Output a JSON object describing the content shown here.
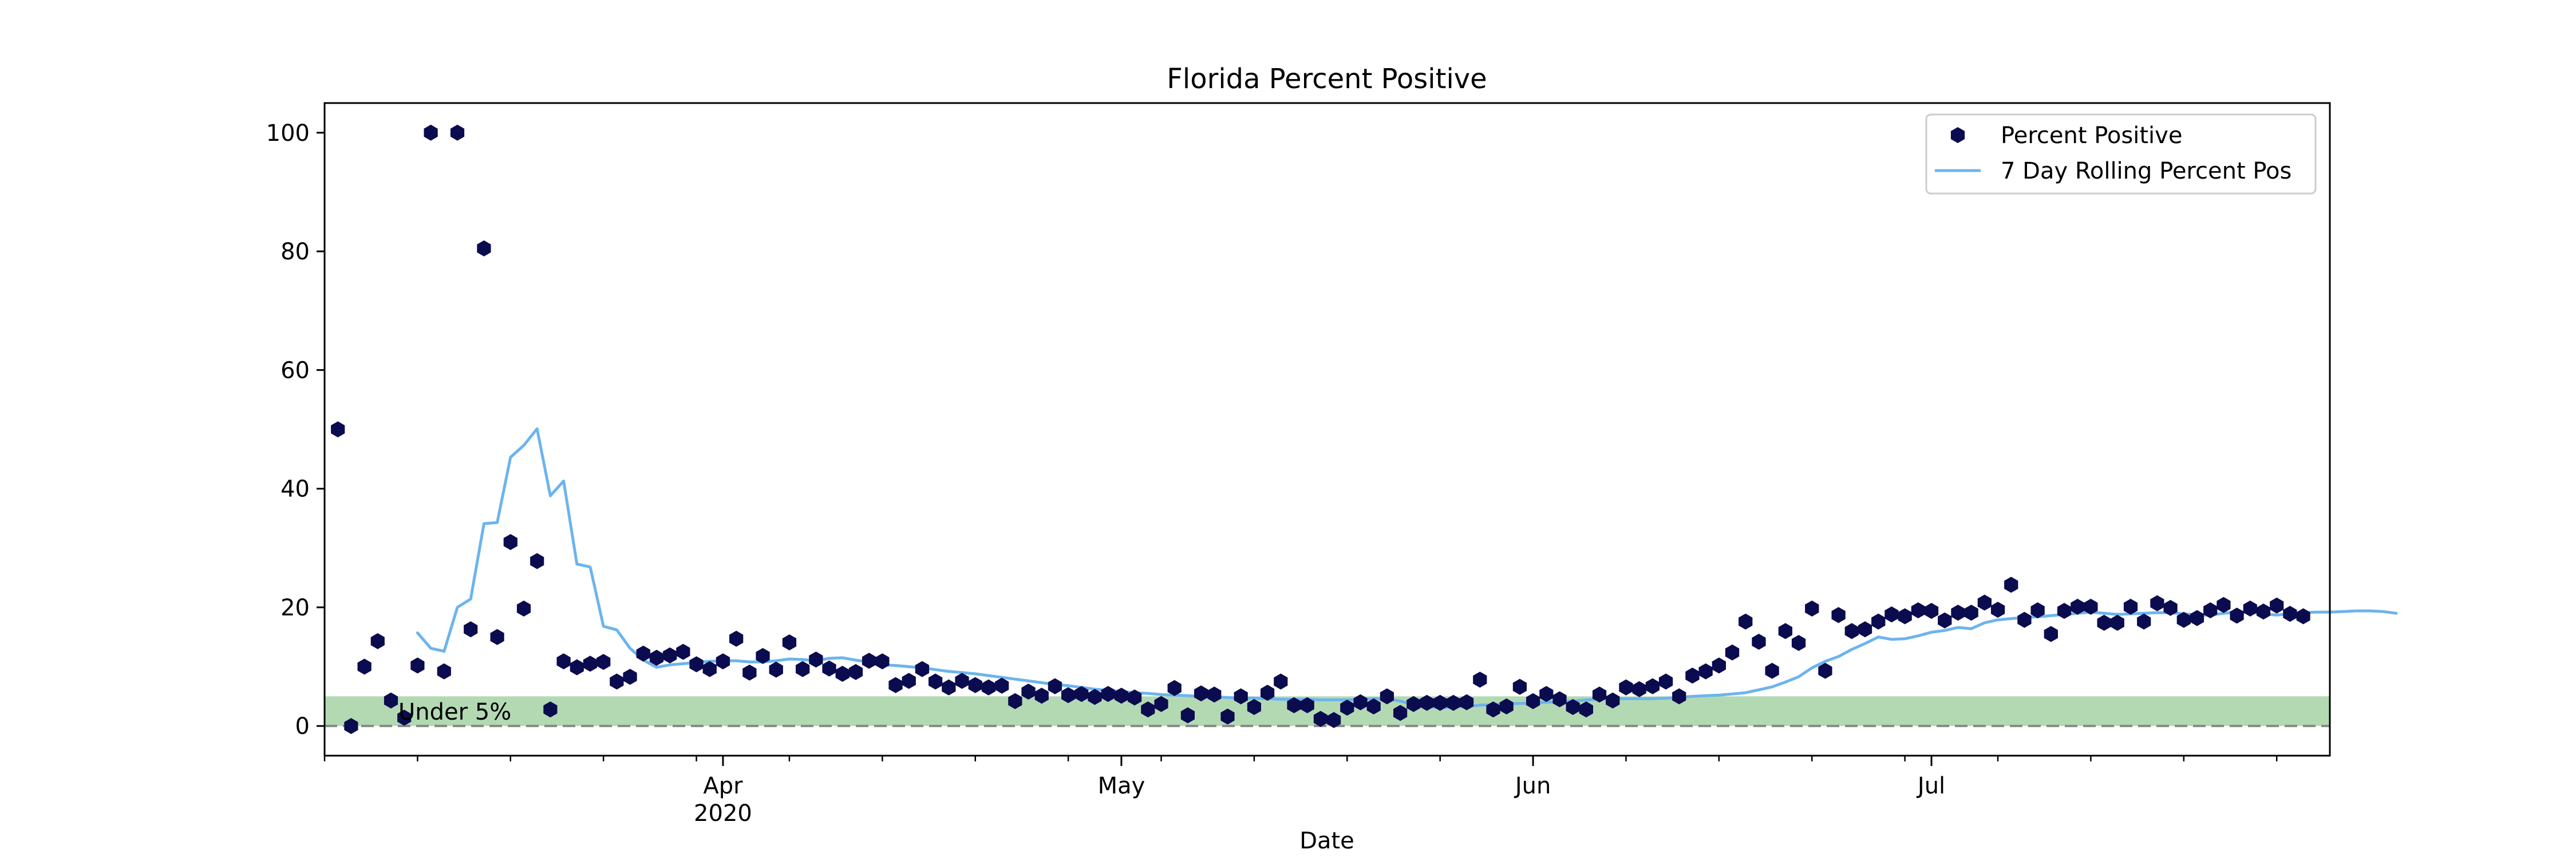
{
  "chart_data": {
    "type": "scatter",
    "title": "Florida Percent Positive",
    "xlabel": "Date",
    "ylabel": "",
    "xlim": [
      "2020-03-02",
      "2020-07-31"
    ],
    "ylim": [
      -5,
      105
    ],
    "y_ticks": [
      0,
      20,
      40,
      60,
      80,
      100
    ],
    "x_major_ticks": [
      {
        "date": "2020-04-01",
        "label": "Apr",
        "sublabel": "2020"
      },
      {
        "date": "2020-05-01",
        "label": "May",
        "sublabel": ""
      },
      {
        "date": "2020-06-01",
        "label": "Jun",
        "sublabel": ""
      },
      {
        "date": "2020-07-01",
        "label": "Jul",
        "sublabel": ""
      }
    ],
    "x_minor_ticks": [
      "2020-03-02",
      "2020-03-09",
      "2020-03-16",
      "2020-03-23",
      "2020-03-30",
      "2020-04-06",
      "2020-04-13",
      "2020-04-20",
      "2020-04-27",
      "2020-05-04",
      "2020-05-11",
      "2020-05-18",
      "2020-05-25",
      "2020-06-01",
      "2020-06-08",
      "2020-06-15",
      "2020-06-22",
      "2020-06-29",
      "2020-07-06",
      "2020-07-13",
      "2020-07-20",
      "2020-07-27"
    ],
    "grid": false,
    "legend": {
      "position": "upper-right",
      "entries": [
        "Percent Positive",
        "7 Day Rolling Percent Pos"
      ]
    },
    "band": {
      "y_from": 0,
      "y_to": 5,
      "label": "Under 5%",
      "color": "#b3d9b3"
    },
    "reference_line": {
      "y": 0,
      "style": "dashed",
      "color": "#888888"
    },
    "series": [
      {
        "name": "Percent Positive",
        "kind": "scatter",
        "marker": "hexagon",
        "color": "#0b0b4f",
        "start_date": "2020-03-03",
        "values": [
          50,
          0,
          10,
          14.3,
          4.3,
          1.4,
          10.2,
          100,
          9.2,
          100,
          16.3,
          80.5,
          15,
          31,
          19.8,
          27.8,
          2.8,
          10.9,
          9.9,
          10.5,
          10.8,
          7.5,
          8.3,
          12.2,
          11.5,
          11.9,
          12.5,
          10.4,
          9.6,
          10.9,
          14.7,
          9,
          11.8,
          9.5,
          14.1,
          9.6,
          11.2,
          9.7,
          8.8,
          9.1,
          11,
          10.9,
          6.9,
          7.6,
          9.6,
          7.5,
          6.5,
          7.6,
          6.9,
          6.5,
          6.8,
          4.2,
          5.8,
          5.1,
          6.7,
          5.2,
          5.4,
          4.9,
          5.4,
          5.1,
          4.8,
          2.8,
          3.7,
          6.4,
          1.8,
          5.5,
          5.3,
          1.6,
          5,
          3.2,
          5.6,
          7.5,
          3.5,
          3.5,
          1.2,
          1,
          3.1,
          4,
          3.3,
          5,
          2.2,
          3.7,
          3.9,
          3.9,
          3.9,
          4,
          7.8,
          2.8,
          3.3,
          6.6,
          4.2,
          5.4,
          4.5,
          3.2,
          2.8,
          5.3,
          4.3,
          6.5,
          6.2,
          6.7,
          7.5,
          5,
          8.5,
          9.2,
          10.2,
          12.4,
          17.6,
          14.2,
          9.3,
          16,
          14,
          19.8,
          9.3,
          18.7,
          16,
          16.3,
          17.6,
          18.8,
          18.5,
          19.5,
          19.4,
          17.8,
          19.1,
          19.1,
          20.8,
          19.6,
          23.8,
          17.9,
          19.5,
          15.5,
          19.4,
          20.1,
          20.1,
          17.4,
          17.4,
          20.1,
          17.6,
          20.7,
          19.9,
          17.9,
          18.2,
          19.5,
          20.4,
          18.6,
          19.8,
          19.3,
          20.3,
          18.9,
          18.5
        ]
      },
      {
        "name": "7 Day Rolling Percent Pos",
        "kind": "line",
        "color": "#6cb4ee",
        "start_date": "2020-03-09",
        "values": [
          15.7,
          13.1,
          12.6,
          20,
          21.4,
          34.1,
          34.3,
          45.3,
          47.3,
          50.1,
          38.8,
          41.3,
          27.3,
          26.8,
          16.8,
          16.2,
          13.1,
          11.1,
          9.9,
          10.3,
          10.5,
          10.7,
          10.9,
          11,
          11,
          10.8,
          10.8,
          11,
          11.3,
          11.2,
          11,
          11.4,
          11.5,
          11.1,
          10.8,
          10.3,
          10.2,
          10,
          9.8,
          9.5,
          9.2,
          9,
          8.8,
          8.5,
          8.2,
          7.9,
          7.6,
          7.3,
          7,
          6.8,
          6.5,
          6.2,
          6,
          5.8,
          5.6,
          5.5,
          5.3,
          5.2,
          5.1,
          5,
          4.9,
          4.8,
          4.7,
          4.7,
          4.6,
          4.5,
          4.5,
          4.5,
          4.4,
          4.4,
          4.4,
          4.5,
          4.6,
          4.6,
          4.2,
          3.6,
          3.3,
          3.1,
          3.2,
          3.3,
          3.5,
          3.6,
          3.7,
          3.8,
          3.9,
          4,
          4.1,
          4.2,
          4.4,
          4.5,
          4.6,
          4.6,
          4.6,
          4.6,
          4.7,
          4.8,
          5,
          5.1,
          5.2,
          5.4,
          5.6,
          6.1,
          6.6,
          7.4,
          8.3,
          9.8,
          10.9,
          11.7,
          12.9,
          13.9,
          15,
          14.6,
          14.7,
          15.2,
          15.8,
          16.1,
          16.6,
          16.4,
          17.4,
          17.9,
          18.1,
          18.3,
          18.4,
          18.6,
          18.8,
          19,
          19.2,
          19,
          18.8,
          18.9,
          19,
          19.1,
          19.1,
          18.9,
          18.7,
          18.7,
          19,
          19.2,
          19.2,
          18.9,
          18.7,
          18.9,
          19.1,
          19.2,
          19.2,
          19.3,
          19.4,
          19.4,
          19.3,
          19
        ]
      }
    ]
  }
}
